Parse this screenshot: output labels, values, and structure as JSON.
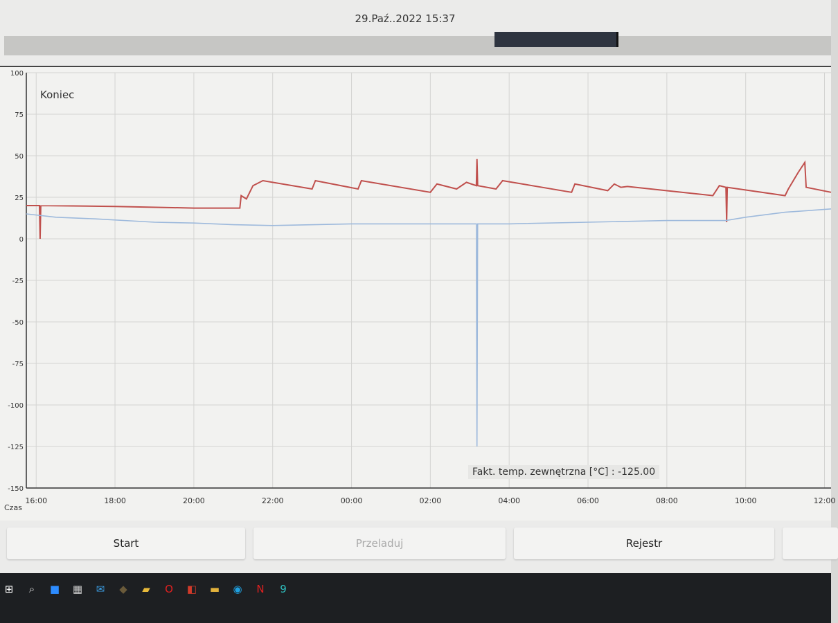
{
  "header": {
    "datetime": "29.Paź..2022 15:37"
  },
  "scrollbar": {
    "position_fraction": 0.6
  },
  "chart_data": {
    "type": "line",
    "annotation": "Koniec",
    "xlabel": "Czas",
    "x_ticks": [
      "16:00",
      "18:00",
      "20:00",
      "22:00",
      "00:00",
      "02:00",
      "04:00",
      "06:00",
      "08:00",
      "10:00",
      "12:00"
    ],
    "x_range": [
      "15:45",
      "12:10"
    ],
    "y_ticks": [
      100,
      75,
      50,
      25,
      0,
      -25,
      -50,
      -75,
      -100,
      -125,
      -150
    ],
    "ylim": [
      -150,
      100
    ],
    "grid": true,
    "tooltip": "Fakt. temp. zewnętrzna [°C] : -125.00",
    "series": [
      {
        "color": "#c0504d",
        "points": [
          [
            "15:45",
            20
          ],
          [
            "16:05",
            20
          ],
          [
            "16:06",
            0
          ],
          [
            "16:07",
            20
          ],
          [
            "18:00",
            19.5
          ],
          [
            "20:00",
            18.5
          ],
          [
            "21:10",
            18.5
          ],
          [
            "21:12",
            26
          ],
          [
            "21:20",
            24
          ],
          [
            "21:30",
            32
          ],
          [
            "21:45",
            35
          ],
          [
            "23:00",
            30
          ],
          [
            "23:05",
            35
          ],
          [
            "00:10",
            30
          ],
          [
            "00:15",
            35
          ],
          [
            "02:00",
            28
          ],
          [
            "02:10",
            33
          ],
          [
            "02:40",
            30
          ],
          [
            "02:55",
            34
          ],
          [
            "03:10",
            32
          ],
          [
            "03:11",
            48
          ],
          [
            "03:12",
            32
          ],
          [
            "03:40",
            30
          ],
          [
            "03:50",
            35
          ],
          [
            "05:35",
            28
          ],
          [
            "05:40",
            33
          ],
          [
            "06:30",
            29
          ],
          [
            "06:40",
            33
          ],
          [
            "06:50",
            31
          ],
          [
            "07:00",
            31.5
          ],
          [
            "09:10",
            26
          ],
          [
            "09:20",
            32
          ],
          [
            "09:30",
            31
          ],
          [
            "09:31",
            10
          ],
          [
            "09:32",
            31
          ],
          [
            "11:00",
            26
          ],
          [
            "11:05",
            30
          ],
          [
            "11:20",
            40
          ],
          [
            "11:30",
            46
          ],
          [
            "11:32",
            31
          ],
          [
            "12:10",
            28
          ]
        ]
      },
      {
        "color": "#9db9dc",
        "points": [
          [
            "15:45",
            15
          ],
          [
            "16:30",
            13
          ],
          [
            "17:30",
            12
          ],
          [
            "19:00",
            10
          ],
          [
            "20:00",
            9.5
          ],
          [
            "21:00",
            8.5
          ],
          [
            "22:00",
            8
          ],
          [
            "00:00",
            9
          ],
          [
            "02:00",
            9
          ],
          [
            "03:10",
            9
          ],
          [
            "03:11",
            -125
          ],
          [
            "03:12",
            9
          ],
          [
            "04:00",
            9
          ],
          [
            "06:00",
            10
          ],
          [
            "08:00",
            11
          ],
          [
            "09:30",
            11
          ],
          [
            "10:00",
            13
          ],
          [
            "11:00",
            16
          ],
          [
            "12:10",
            18
          ]
        ]
      }
    ]
  },
  "buttons": {
    "start": "Start",
    "reload": "Przeladuj",
    "register": "Rejestr"
  },
  "taskbar": {
    "icons": [
      "windows-icon",
      "search-icon",
      "zoom-icon",
      "calculator-icon",
      "mail-icon",
      "app-icon",
      "files-icon",
      "opera-icon",
      "office-icon",
      "folder-icon",
      "edge-icon",
      "netflix-icon",
      "app9-icon"
    ]
  }
}
